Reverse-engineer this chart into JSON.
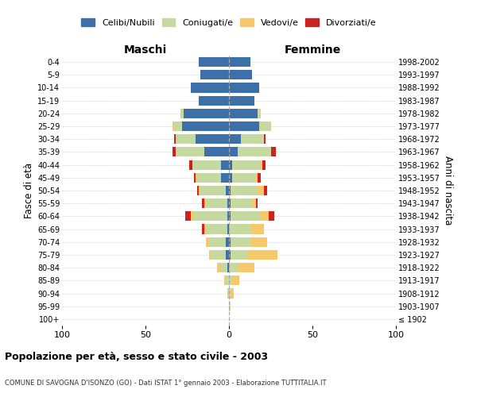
{
  "age_groups": [
    "100+",
    "95-99",
    "90-94",
    "85-89",
    "80-84",
    "75-79",
    "70-74",
    "65-69",
    "60-64",
    "55-59",
    "50-54",
    "45-49",
    "40-44",
    "35-39",
    "30-34",
    "25-29",
    "20-24",
    "15-19",
    "10-14",
    "5-9",
    "0-4"
  ],
  "birth_years": [
    "≤ 1902",
    "1903-1907",
    "1908-1912",
    "1913-1917",
    "1918-1922",
    "1923-1927",
    "1928-1932",
    "1933-1937",
    "1938-1942",
    "1943-1947",
    "1948-1952",
    "1953-1957",
    "1958-1962",
    "1963-1967",
    "1968-1972",
    "1973-1977",
    "1978-1982",
    "1983-1987",
    "1988-1992",
    "1993-1997",
    "1998-2002"
  ],
  "maschi": {
    "celibi": [
      0,
      0,
      0,
      0,
      1,
      2,
      2,
      1,
      1,
      1,
      2,
      5,
      5,
      15,
      20,
      28,
      27,
      18,
      23,
      17,
      18
    ],
    "coniugati": [
      0,
      0,
      1,
      2,
      4,
      9,
      10,
      13,
      20,
      13,
      15,
      14,
      17,
      17,
      12,
      5,
      2,
      0,
      0,
      0,
      0
    ],
    "vedovi": [
      0,
      0,
      0,
      1,
      2,
      1,
      2,
      1,
      2,
      1,
      1,
      1,
      0,
      0,
      0,
      1,
      0,
      0,
      0,
      0,
      0
    ],
    "divorziati": [
      0,
      0,
      0,
      0,
      0,
      0,
      0,
      1,
      3,
      1,
      1,
      1,
      2,
      2,
      1,
      0,
      0,
      0,
      0,
      0,
      0
    ]
  },
  "femmine": {
    "nubili": [
      0,
      0,
      0,
      0,
      0,
      1,
      1,
      0,
      1,
      1,
      1,
      2,
      2,
      5,
      7,
      18,
      17,
      15,
      18,
      14,
      13
    ],
    "coniugate": [
      0,
      0,
      1,
      2,
      5,
      10,
      12,
      13,
      18,
      13,
      16,
      14,
      17,
      20,
      14,
      7,
      2,
      0,
      0,
      0,
      0
    ],
    "vedove": [
      0,
      1,
      2,
      4,
      10,
      18,
      10,
      8,
      5,
      2,
      4,
      1,
      1,
      0,
      0,
      0,
      0,
      0,
      0,
      0,
      0
    ],
    "divorziate": [
      0,
      0,
      0,
      0,
      0,
      0,
      0,
      0,
      3,
      1,
      2,
      2,
      2,
      3,
      1,
      0,
      0,
      0,
      0,
      0,
      0
    ]
  },
  "colors": {
    "celibi": "#3d6fa8",
    "coniugati": "#c5d9a0",
    "vedovi": "#f5c96a",
    "divorziati": "#cc2222"
  },
  "xlim": 100,
  "title": "Popolazione per età, sesso e stato civile - 2003",
  "subtitle": "COMUNE DI SAVOGNA D'ISONZO (GO) - Dati ISTAT 1° gennaio 2003 - Elaborazione TUTTITALIA.IT",
  "ylabel_left": "Fasce di età",
  "ylabel_right": "Anni di nascita",
  "xlabel_left": "Maschi",
  "xlabel_right": "Femmine"
}
